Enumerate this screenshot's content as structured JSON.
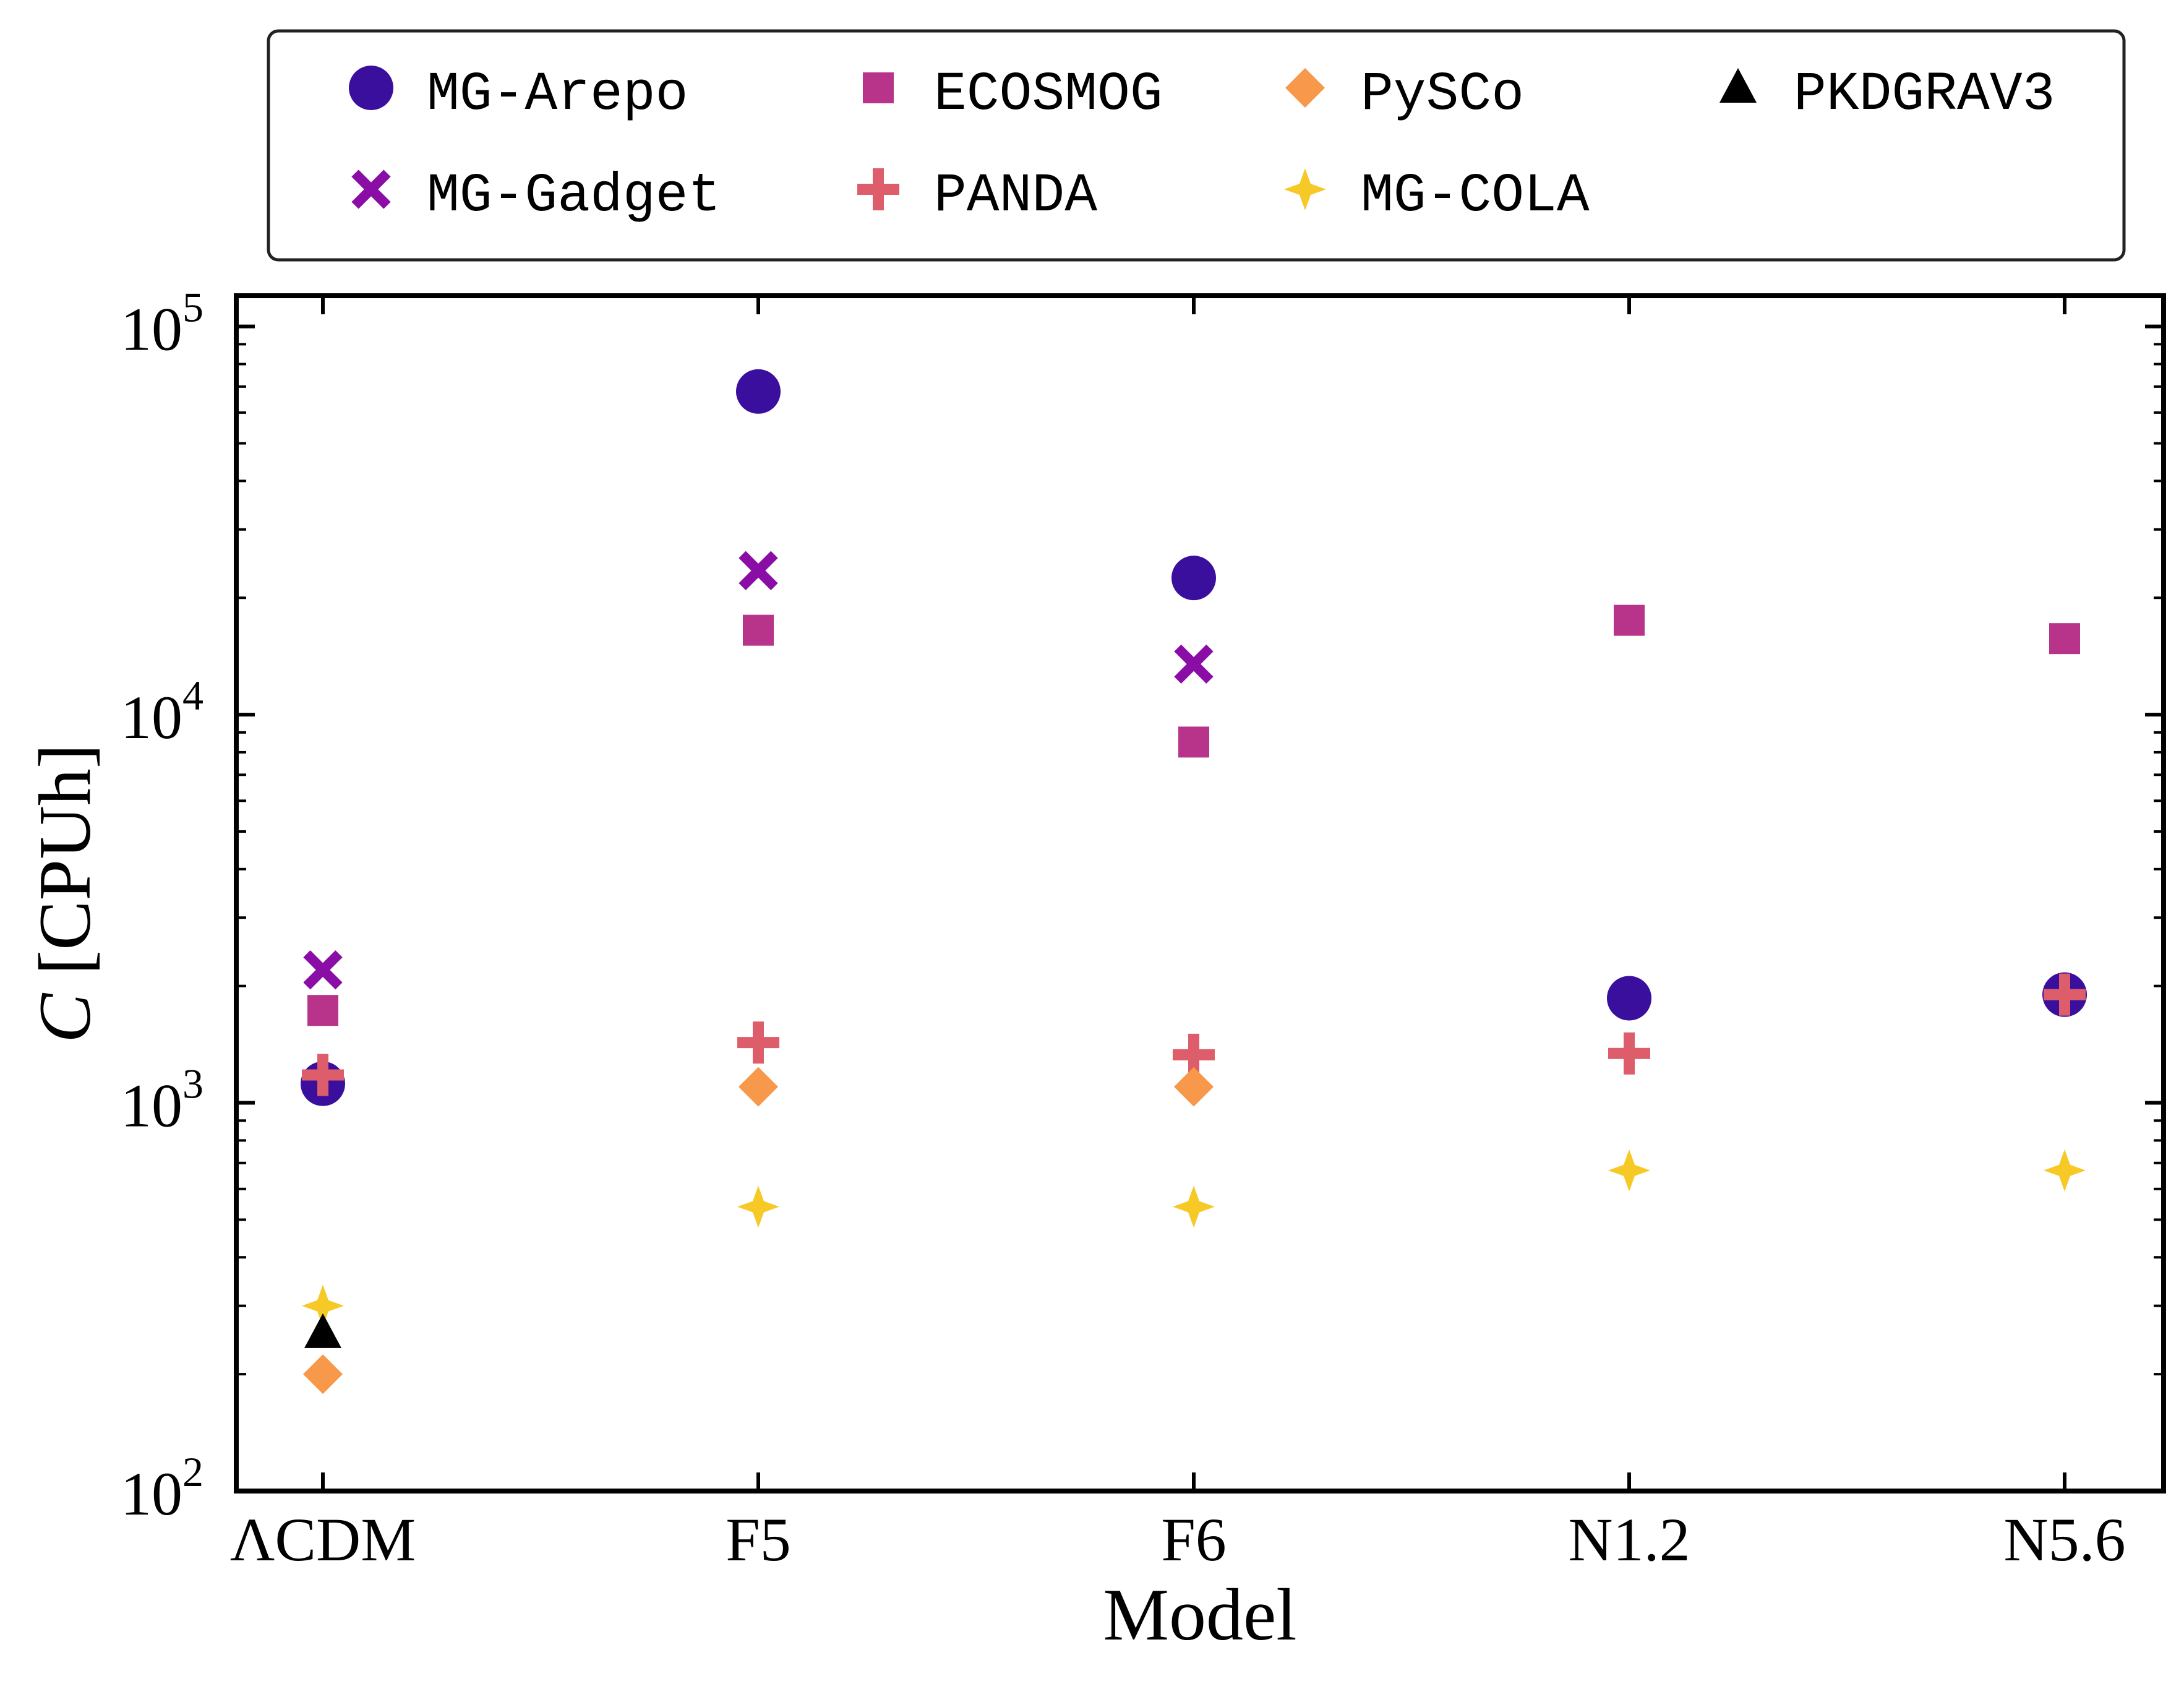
{
  "chart_data": {
    "type": "scatter",
    "xlabel": "Model",
    "ylabel_italic": "C",
    "ylabel_rest": " [CPUh]",
    "yscale": "log",
    "ylim": [
      100,
      120000
    ],
    "categories": [
      "ΛCDM",
      "F5",
      "F6",
      "N1.2",
      "N5.6"
    ],
    "yticks": [
      {
        "base": "10",
        "exp": "2",
        "value": 100
      },
      {
        "base": "10",
        "exp": "3",
        "value": 1000
      },
      {
        "base": "10",
        "exp": "4",
        "value": 10000
      },
      {
        "base": "10",
        "exp": "5",
        "value": 100000
      }
    ],
    "legend_position": "above plot",
    "series": [
      {
        "name": "MG-Arepo",
        "marker": "circle",
        "color": "#3b0f9e",
        "values": [
          1120,
          68000,
          22500,
          1860,
          1900
        ]
      },
      {
        "name": "MG-Gadget",
        "marker": "x",
        "color": "#8a0da6",
        "values": [
          2200,
          23500,
          13500,
          null,
          null
        ]
      },
      {
        "name": "ECOSMOG",
        "marker": "square",
        "color": "#b8348a",
        "values": [
          1730,
          16500,
          8500,
          17500,
          15700
        ]
      },
      {
        "name": "PANDA",
        "marker": "plus",
        "color": "#de5d6a",
        "values": [
          1180,
          1430,
          1330,
          1340,
          1900
        ]
      },
      {
        "name": "PySCo",
        "marker": "diamond",
        "color": "#f7984a",
        "values": [
          200,
          1100,
          1100,
          null,
          null
        ]
      },
      {
        "name": "MG-COLA",
        "marker": "star4",
        "color": "#f6c926",
        "values": [
          300,
          540,
          540,
          670,
          670
        ]
      },
      {
        "name": "PKDGRAV3",
        "marker": "triangle",
        "color": "#000000",
        "values": [
          255,
          null,
          null,
          null,
          null
        ]
      }
    ],
    "legend_order": [
      "MG-Arepo",
      "ECOSMOG",
      "PySCo",
      "PKDGRAV3",
      "MG-Gadget",
      "PANDA",
      "MG-COLA"
    ]
  }
}
